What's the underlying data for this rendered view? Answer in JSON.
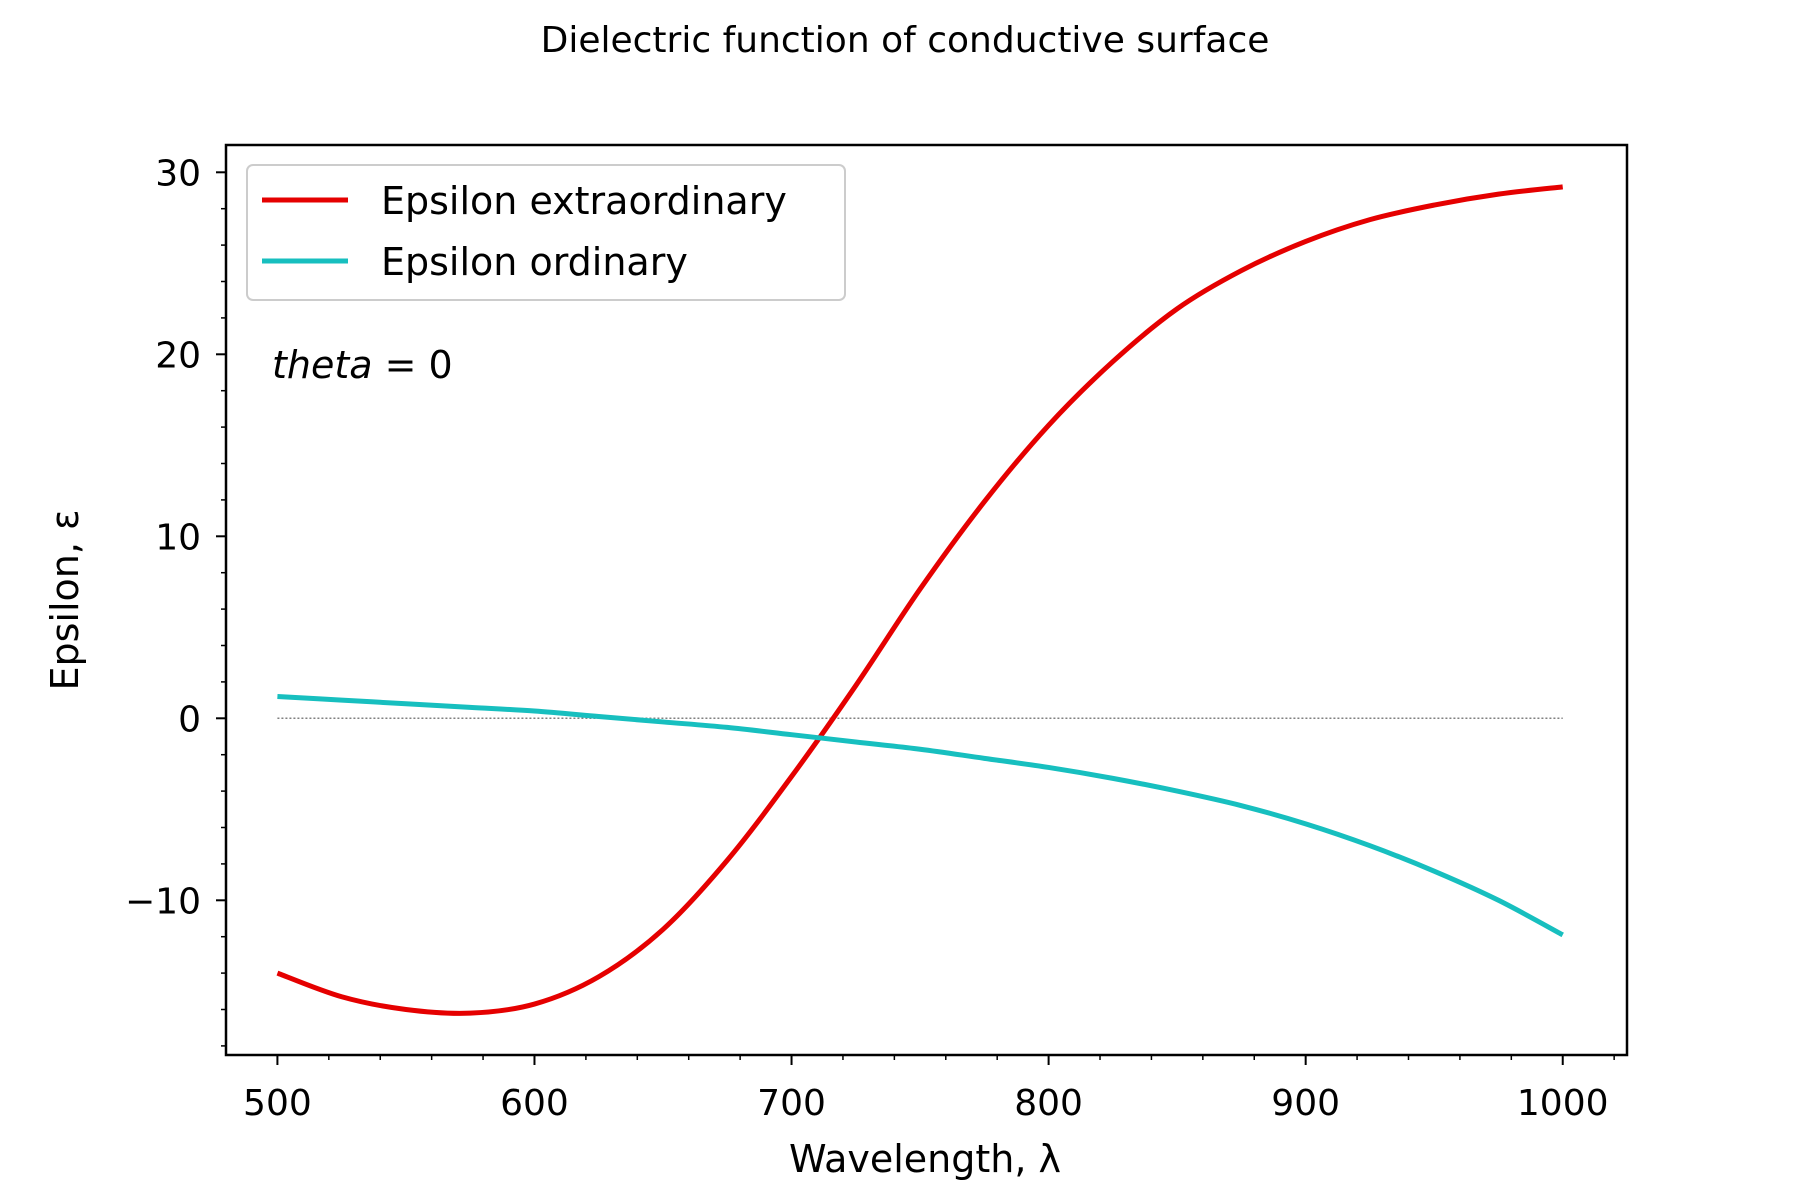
{
  "chart_data": {
    "type": "line",
    "title": "Dielectric function of conductive surface",
    "xlabel": "Wavelength, λ",
    "ylabel": "Epsilon, ε",
    "annotation": {
      "var": "theta",
      "rest": " = 0"
    },
    "xlim": [
      480,
      1025
    ],
    "ylim": [
      -18.5,
      31.5
    ],
    "x_ticks": [
      500,
      600,
      700,
      800,
      900,
      1000
    ],
    "x_tick_labels": [
      "500",
      "600",
      "700",
      "800",
      "900",
      "1000"
    ],
    "y_ticks": [
      -10,
      0,
      10,
      20,
      30
    ],
    "y_tick_labels": [
      "−10",
      "0",
      "10",
      "20",
      "30"
    ],
    "grid": false,
    "legend_position": "top-left",
    "reference_line": {
      "y": 0,
      "x_range": [
        500,
        1000
      ],
      "color": "#808080",
      "style": "dotted"
    },
    "series": [
      {
        "name": "Epsilon extraordinary",
        "color": "#e50000",
        "x": [
          500,
          525,
          550,
          575,
          600,
          625,
          650,
          675,
          700,
          725,
          750,
          775,
          800,
          825,
          850,
          875,
          900,
          925,
          950,
          975,
          1000
        ],
        "y": [
          -14.0,
          -15.3,
          -16.0,
          -16.2,
          -15.7,
          -14.2,
          -11.6,
          -7.8,
          -3.2,
          1.8,
          7.1,
          11.9,
          16.1,
          19.6,
          22.5,
          24.6,
          26.2,
          27.4,
          28.2,
          28.8,
          29.2
        ]
      },
      {
        "name": "Epsilon ordinary",
        "color": "#17bfbf",
        "x": [
          500,
          525,
          550,
          575,
          600,
          625,
          650,
          675,
          700,
          725,
          750,
          775,
          800,
          825,
          850,
          875,
          900,
          925,
          950,
          975,
          1000
        ],
        "y": [
          1.2,
          1.0,
          0.8,
          0.6,
          0.4,
          0.1,
          -0.2,
          -0.5,
          -0.9,
          -1.3,
          -1.7,
          -2.2,
          -2.7,
          -3.3,
          -4.0,
          -4.8,
          -5.8,
          -7.0,
          -8.4,
          -10.0,
          -11.9
        ]
      }
    ]
  }
}
